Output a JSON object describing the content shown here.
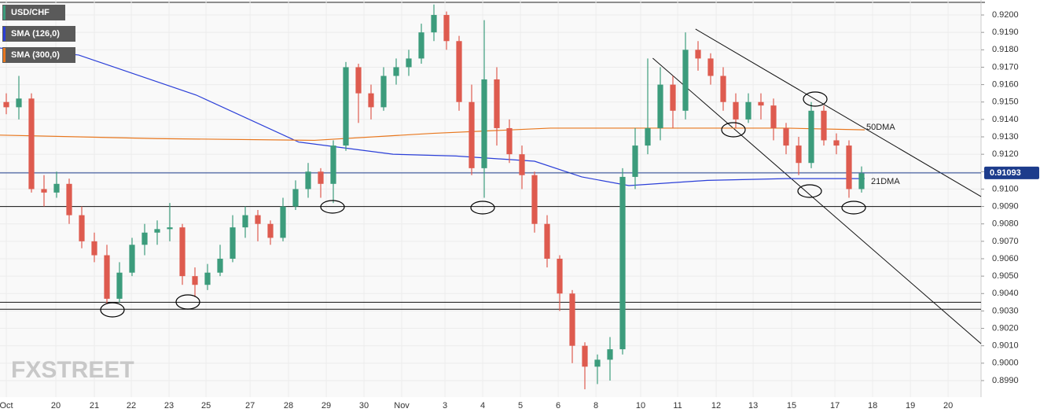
{
  "chart_data": {
    "type": "candlestick",
    "symbol": "USD/CHF",
    "x": [
      0.5,
      1.5,
      2.5,
      3.5,
      4.5,
      5.5,
      6.5,
      7.5,
      8.5,
      9.5,
      10.5,
      11.5,
      12.5,
      13.5,
      14.5,
      15.5,
      16.5,
      17.5,
      18.5,
      19.5,
      20.5,
      21.5,
      22.5,
      23.5,
      24.5,
      25.5,
      26.5,
      27.5,
      28.5,
      29.5,
      30.5,
      31.5,
      32.5,
      33.5,
      34.5,
      35.5,
      36.5,
      37.5,
      38.5,
      39.5,
      40.5,
      41.5,
      42.5,
      43.5,
      44.5,
      45.5,
      46.5,
      47.5,
      48.5,
      49.5,
      50.5,
      51.5,
      52.5,
      53.5,
      54.5,
      55.5,
      56.5,
      57.5,
      58.5,
      59.5,
      60.5,
      61.5,
      62.5,
      63.5,
      64.5,
      65.5,
      66.5,
      67.5,
      68.5
    ],
    "open": [
      0.915,
      0.9147,
      0.9152,
      0.91,
      0.9098,
      0.9103,
      0.9085,
      0.907,
      0.9062,
      0.9037,
      0.9052,
      0.9068,
      0.9075,
      0.9077,
      0.9078,
      0.905,
      0.9045,
      0.9052,
      0.906,
      0.9078,
      0.9085,
      0.908,
      0.9072,
      0.909,
      0.91,
      0.911,
      0.9103,
      0.9125,
      0.917,
      0.9155,
      0.9147,
      0.9165,
      0.917,
      0.9175,
      0.919,
      0.92,
      0.9185,
      0.915,
      0.9112,
      0.9163,
      0.9135,
      0.912,
      0.9108,
      0.908,
      0.906,
      0.904,
      0.901,
      0.8998,
      0.9002,
      0.9008,
      0.9107,
      0.9125,
      0.9135,
      0.916,
      0.9145,
      0.918,
      0.9175,
      0.9165,
      0.915,
      0.914,
      0.915,
      0.9148,
      0.9135,
      0.9125,
      0.9115,
      0.9145,
      0.9128,
      0.9125,
      0.91
    ],
    "high": [
      0.9155,
      0.9165,
      0.9155,
      0.9108,
      0.911,
      0.9106,
      0.909,
      0.9075,
      0.9068,
      0.9058,
      0.9072,
      0.908,
      0.9082,
      0.9092,
      0.908,
      0.9055,
      0.9057,
      0.9068,
      0.9085,
      0.909,
      0.9088,
      0.9082,
      0.9095,
      0.9105,
      0.9115,
      0.9112,
      0.9128,
      0.9173,
      0.9172,
      0.916,
      0.917,
      0.9175,
      0.918,
      0.9195,
      0.9206,
      0.9202,
      0.9188,
      0.916,
      0.9197,
      0.917,
      0.914,
      0.9125,
      0.911,
      0.9085,
      0.9062,
      0.9042,
      0.9012,
      0.9005,
      0.9015,
      0.9112,
      0.9135,
      0.9175,
      0.917,
      0.9165,
      0.919,
      0.9185,
      0.9178,
      0.917,
      0.9155,
      0.9155,
      0.9155,
      0.9152,
      0.9138,
      0.913,
      0.915,
      0.9148,
      0.9132,
      0.9128,
      0.9113
    ],
    "low": [
      0.9143,
      0.914,
      0.9098,
      0.909,
      0.9095,
      0.908,
      0.9066,
      0.9058,
      0.9034,
      0.9035,
      0.905,
      0.9062,
      0.9068,
      0.907,
      0.9045,
      0.9038,
      0.9042,
      0.905,
      0.9058,
      0.9072,
      0.907,
      0.9068,
      0.907,
      0.9088,
      0.9095,
      0.9095,
      0.9092,
      0.9122,
      0.9138,
      0.914,
      0.9145,
      0.916,
      0.9165,
      0.9172,
      0.9185,
      0.918,
      0.9145,
      0.9108,
      0.9095,
      0.9125,
      0.9115,
      0.91,
      0.9075,
      0.9055,
      0.903,
      0.9,
      0.8985,
      0.8988,
      0.899,
      0.9005,
      0.91,
      0.912,
      0.9128,
      0.9135,
      0.914,
      0.9168,
      0.916,
      0.9145,
      0.9135,
      0.9138,
      0.914,
      0.9128,
      0.912,
      0.9108,
      0.9112,
      0.9125,
      0.912,
      0.9095,
      0.9098
    ],
    "close": [
      0.9147,
      0.9152,
      0.91,
      0.9098,
      0.9103,
      0.9085,
      0.907,
      0.9062,
      0.9037,
      0.9052,
      0.9068,
      0.9075,
      0.9077,
      0.9078,
      0.905,
      0.9045,
      0.9052,
      0.906,
      0.9078,
      0.9085,
      0.908,
      0.9072,
      0.909,
      0.91,
      0.911,
      0.9103,
      0.9125,
      0.917,
      0.9155,
      0.9147,
      0.9165,
      0.917,
      0.9175,
      0.919,
      0.92,
      0.9185,
      0.915,
      0.9112,
      0.9163,
      0.9135,
      0.912,
      0.9108,
      0.908,
      0.906,
      0.904,
      0.901,
      0.8998,
      0.9002,
      0.9008,
      0.9107,
      0.9125,
      0.9135,
      0.916,
      0.9145,
      0.918,
      0.9175,
      0.9165,
      0.915,
      0.914,
      0.915,
      0.9148,
      0.9135,
      0.9125,
      0.9115,
      0.9145,
      0.9128,
      0.9125,
      0.91,
      0.9109
    ],
    "up_color": "#3c9c7c",
    "down_color": "#de5b4f",
    "overlays": [
      {
        "name": "SMA (126,0)",
        "color": "#2b3fd8",
        "x": [
          0,
          6.25,
          15.6,
          23.75,
          31.25,
          36.25,
          42.5,
          46.25,
          50,
          56.25,
          62.5,
          68.75
        ],
        "values": [
          0.9181,
          0.9177,
          0.9154,
          0.9127,
          0.912,
          0.9119,
          0.9116,
          0.9107,
          0.9102,
          0.9105,
          0.9106,
          0.9106
        ]
      },
      {
        "name": "SMA (300,0)",
        "color": "#e8771e",
        "x": [
          0,
          12.5,
          25,
          34.4,
          43.75,
          53.1,
          62.5,
          68.75
        ],
        "values": [
          0.9131,
          0.9129,
          0.9128,
          0.9132,
          0.9135,
          0.9135,
          0.9135,
          0.9134
        ]
      }
    ],
    "hlines": [
      0.909,
      0.9035,
      0.9031
    ],
    "trendlines": [
      {
        "x": [
          51.9,
          78
        ],
        "values": [
          0.91752,
          0.90112
        ]
      },
      {
        "x": [
          55.3,
          78
        ],
        "values": [
          0.91919,
          0.90957
        ]
      }
    ],
    "annotations": [
      "50DMA",
      "21DMA"
    ],
    "last_price": 0.91093,
    "last_price_color": "#1d3c8c",
    "watermark": "FXSTREET",
    "xlim": [
      0,
      78
    ],
    "ylim": [
      0.89805,
      0.92086
    ],
    "xticks": [
      {
        "value": 0.5,
        "label": "Oct"
      },
      {
        "value": 4.44,
        "label": "20"
      },
      {
        "value": 7.5,
        "label": "21"
      },
      {
        "value": 10.44,
        "label": "22"
      },
      {
        "value": 13.44,
        "label": "23"
      },
      {
        "value": 16.38,
        "label": "25"
      },
      {
        "value": 19.88,
        "label": "27"
      },
      {
        "value": 22.94,
        "label": "28"
      },
      {
        "value": 25.94,
        "label": "29"
      },
      {
        "value": 28.94,
        "label": "30"
      },
      {
        "value": 31.94,
        "label": "Nov"
      },
      {
        "value": 35.38,
        "label": "3"
      },
      {
        "value": 38.38,
        "label": "4"
      },
      {
        "value": 41.38,
        "label": "5"
      },
      {
        "value": 44.38,
        "label": "6"
      },
      {
        "value": 47.38,
        "label": "8"
      },
      {
        "value": 50.94,
        "label": "10"
      },
      {
        "value": 53.88,
        "label": "11"
      },
      {
        "value": 56.94,
        "label": "12"
      },
      {
        "value": 59.88,
        "label": "13"
      },
      {
        "value": 62.94,
        "label": "15"
      },
      {
        "value": 66.38,
        "label": "17"
      },
      {
        "value": 69.38,
        "label": "18"
      },
      {
        "value": 72.38,
        "label": "19"
      },
      {
        "value": 75.38,
        "label": "20"
      }
    ],
    "yticks": [
      {
        "value": 0.899,
        "label": "0.8990"
      },
      {
        "value": 0.9,
        "label": "0.9000"
      },
      {
        "value": 0.901,
        "label": "0.9010"
      },
      {
        "value": 0.902,
        "label": "0.9020"
      },
      {
        "value": 0.903,
        "label": "0.9030"
      },
      {
        "value": 0.904,
        "label": "0.9040"
      },
      {
        "value": 0.905,
        "label": "0.9050"
      },
      {
        "value": 0.906,
        "label": "0.9060"
      },
      {
        "value": 0.907,
        "label": "0.9070"
      },
      {
        "value": 0.908,
        "label": "0.9080"
      },
      {
        "value": 0.909,
        "label": "0.9090"
      },
      {
        "value": 0.91,
        "label": "0.9100"
      },
      {
        "value": 0.911,
        "label": "0.9110"
      },
      {
        "value": 0.912,
        "label": "0.9120"
      },
      {
        "value": 0.913,
        "label": "0.9130"
      },
      {
        "value": 0.914,
        "label": "0.9140"
      },
      {
        "value": 0.915,
        "label": "0.9150"
      },
      {
        "value": 0.916,
        "label": "0.9160"
      },
      {
        "value": 0.917,
        "label": "0.9170"
      },
      {
        "value": 0.918,
        "label": "0.9180"
      },
      {
        "value": 0.919,
        "label": "0.9190"
      },
      {
        "value": 0.92,
        "label": "0.9200"
      }
    ],
    "grid": true
  }
}
